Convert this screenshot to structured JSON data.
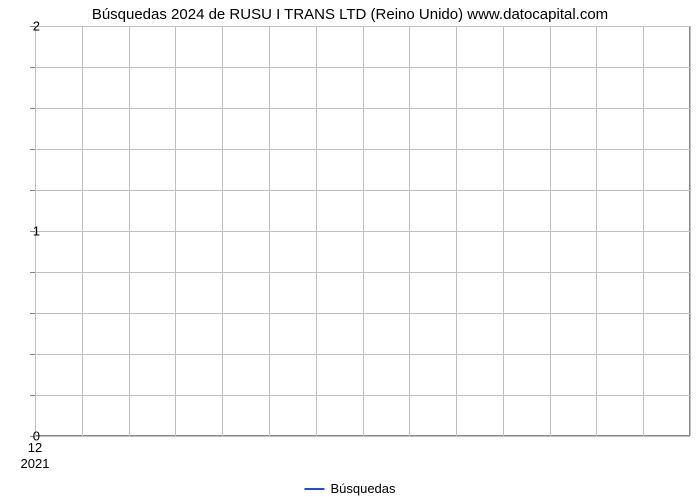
{
  "chart": {
    "type": "line",
    "title": "Búsquedas 2024 de RUSU I TRANS LTD (Reino Unido) www.datocapital.com",
    "title_fontsize": 15,
    "title_color": "#000000",
    "background_color": "#ffffff",
    "plot_border_color": "#888888",
    "grid_color": "#c0c0c0",
    "ylim": [
      0,
      2
    ],
    "ytick_major": [
      0,
      1,
      2
    ],
    "ytick_minor_count_between": 4,
    "yminor_positions": [
      0.2,
      0.4,
      0.6,
      0.8,
      1.2,
      1.4,
      1.6,
      1.8
    ],
    "ylabel_fontsize": 13,
    "x_gridline_count": 14,
    "xtick_label": "12",
    "xsub_label": "2021",
    "xlabel_fontsize": 13,
    "series": [
      {
        "name": "Búsquedas",
        "color": "#1f4ed8",
        "values": []
      }
    ],
    "legend": {
      "position": "bottom-center",
      "label": "Búsquedas",
      "line_color": "#1f4ed8",
      "fontsize": 13
    }
  }
}
